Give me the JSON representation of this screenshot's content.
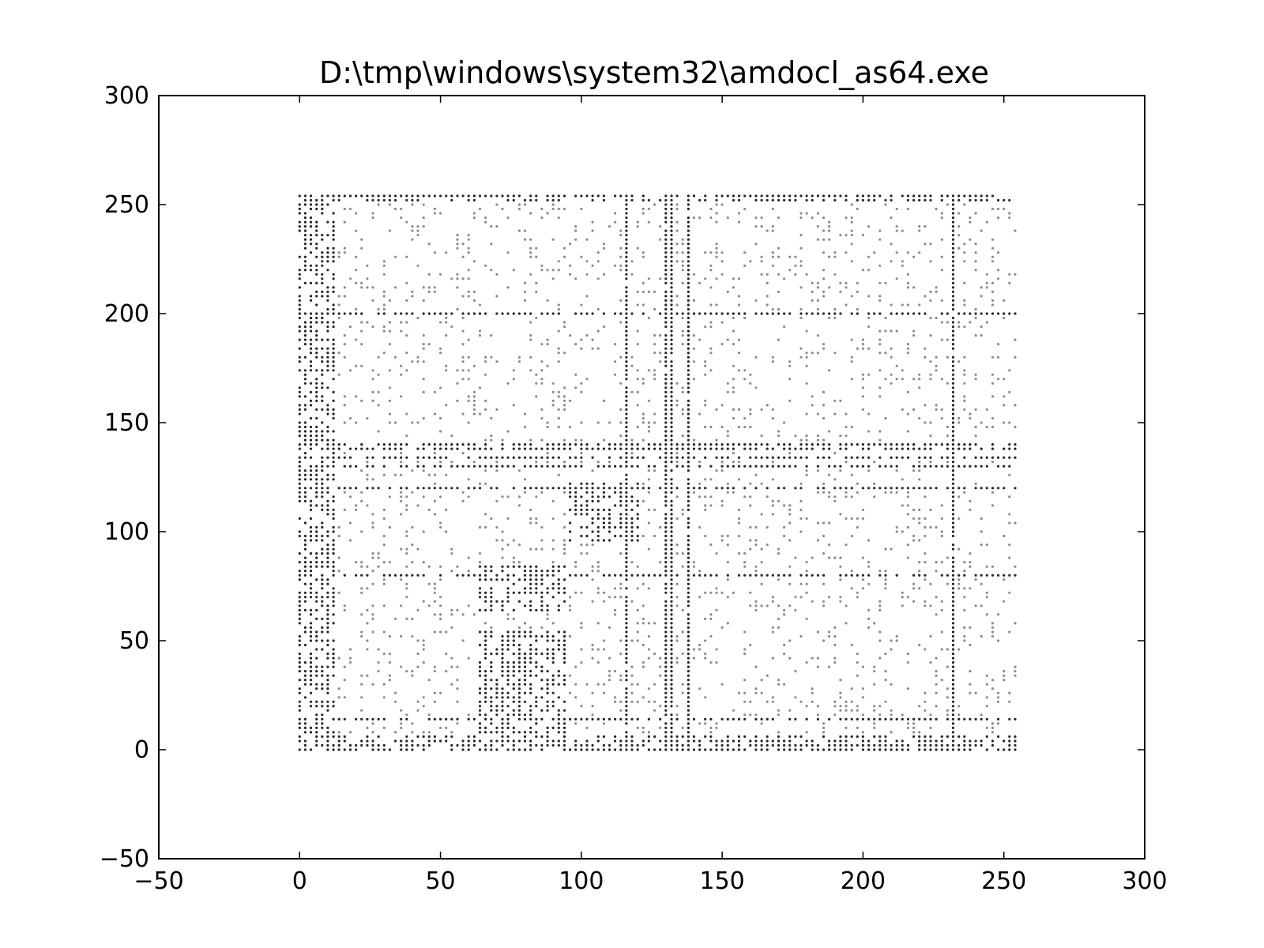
{
  "chart_data": {
    "type": "scatter",
    "title": "D:\\tmp\\windows\\system32\\amdocl_as64.exe",
    "xlabel": "",
    "ylabel": "",
    "xlim": [
      -50,
      300
    ],
    "ylim": [
      -50,
      300
    ],
    "xticks": [
      -50,
      0,
      50,
      100,
      150,
      200,
      250,
      300
    ],
    "yticks": [
      -50,
      0,
      50,
      100,
      150,
      200,
      250,
      300
    ],
    "xtick_labels": [
      "−50",
      "0",
      "50",
      "100",
      "150",
      "200",
      "250",
      "300"
    ],
    "ytick_labels": [
      "−50",
      "0",
      "50",
      "100",
      "150",
      "200",
      "250",
      "300"
    ],
    "grid": false,
    "legend": "none",
    "marker_color": "#000000",
    "data_extent": {
      "x": [
        0,
        255
      ],
      "y": [
        0,
        255
      ]
    },
    "dense_columns_x": [
      117,
      131,
      132,
      138,
      139,
      232
    ],
    "dense_rows_y": [
      0,
      1,
      2,
      15,
      80,
      120,
      130,
      135,
      138,
      140,
      200,
      255
    ],
    "dense_blocks": [
      {
        "x": [
          95,
          121
        ],
        "y": [
          96,
          122
        ]
      },
      {
        "x": [
          64,
          95
        ],
        "y": [
          64,
          84
        ]
      },
      {
        "x": [
          64,
          95
        ],
        "y": [
          0,
          55
        ]
      },
      {
        "x": [
          0,
          12
        ],
        "y": [
          0,
          255
        ]
      }
    ]
  }
}
